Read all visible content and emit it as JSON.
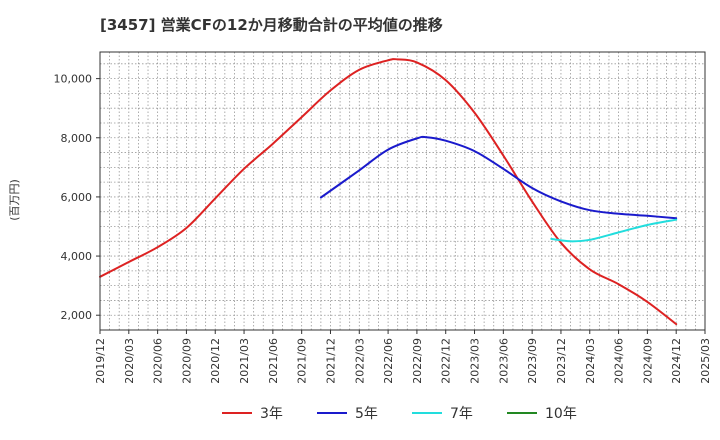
{
  "chart_data": {
    "type": "line",
    "title": "[3457]  営業CFの12か月移動合計の平均値の推移",
    "ylabel": "(百万円)",
    "xlabel": "",
    "ylim": [
      1500,
      10900
    ],
    "yticks": [
      2000,
      4000,
      6000,
      8000,
      10000
    ],
    "ytick_labels": [
      "2,000",
      "4,000",
      "6,000",
      "8,000",
      "10,000"
    ],
    "x_start": "2019-12",
    "x_end": "2025-03",
    "xtick_labels": [
      "2019/12",
      "2020/03",
      "2020/06",
      "2020/09",
      "2020/12",
      "2021/03",
      "2021/06",
      "2021/09",
      "2021/12",
      "2022/03",
      "2022/06",
      "2022/09",
      "2022/12",
      "2023/03",
      "2023/06",
      "2023/09",
      "2023/12",
      "2024/03",
      "2024/06",
      "2024/09",
      "2024/12",
      "2025/03"
    ],
    "grid": true,
    "legend_position": "bottom",
    "series": [
      {
        "name": "3年",
        "color": "#dd2222",
        "points": [
          [
            "2019-12",
            3300
          ],
          [
            "2020-03",
            3800
          ],
          [
            "2020-06",
            4300
          ],
          [
            "2020-09",
            4950
          ],
          [
            "2020-12",
            5950
          ],
          [
            "2021-03",
            6950
          ],
          [
            "2021-06",
            7800
          ],
          [
            "2021-09",
            8700
          ],
          [
            "2021-12",
            9600
          ],
          [
            "2022-03",
            10300
          ],
          [
            "2022-06",
            10620
          ],
          [
            "2022-07",
            10650
          ],
          [
            "2022-09",
            10550
          ],
          [
            "2022-12",
            9950
          ],
          [
            "2023-03",
            8850
          ],
          [
            "2023-06",
            7400
          ],
          [
            "2023-09",
            5850
          ],
          [
            "2023-12",
            4450
          ],
          [
            "2024-03",
            3550
          ],
          [
            "2024-06",
            3050
          ],
          [
            "2024-09",
            2450
          ],
          [
            "2024-12",
            1700
          ]
        ]
      },
      {
        "name": "5年",
        "color": "#1a1acc",
        "points": [
          [
            "2021-11",
            5980
          ],
          [
            "2022-03",
            6900
          ],
          [
            "2022-06",
            7600
          ],
          [
            "2022-09",
            7980
          ],
          [
            "2022-10",
            8020
          ],
          [
            "2022-12",
            7900
          ],
          [
            "2023-03",
            7550
          ],
          [
            "2023-06",
            6950
          ],
          [
            "2023-09",
            6300
          ],
          [
            "2023-12",
            5850
          ],
          [
            "2024-03",
            5550
          ],
          [
            "2024-06",
            5430
          ],
          [
            "2024-09",
            5360
          ],
          [
            "2024-12",
            5280
          ]
        ]
      },
      {
        "name": "7年",
        "color": "#22dddd",
        "points": [
          [
            "2023-11",
            4580
          ],
          [
            "2024-01",
            4500
          ],
          [
            "2024-03",
            4550
          ],
          [
            "2024-06",
            4800
          ],
          [
            "2024-09",
            5050
          ],
          [
            "2024-12",
            5230
          ]
        ]
      },
      {
        "name": "10年",
        "color": "#228822",
        "points": []
      }
    ]
  }
}
